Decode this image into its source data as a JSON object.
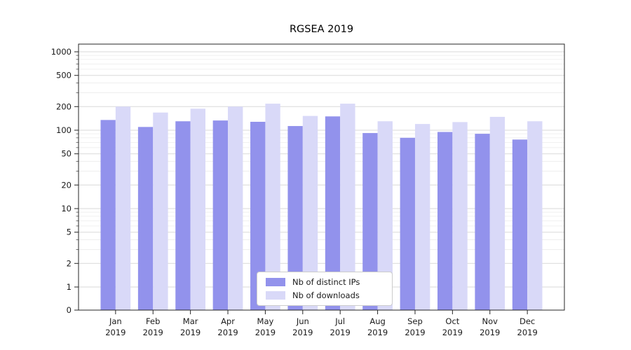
{
  "chart_data": {
    "type": "bar",
    "title": "RGSEA 2019",
    "categories": [
      "Jan 2019",
      "Feb 2019",
      "Mar 2019",
      "Apr 2019",
      "May 2019",
      "Jun 2019",
      "Jul 2019",
      "Aug 2019",
      "Sep 2019",
      "Oct 2019",
      "Nov 2019",
      "Dec 2019"
    ],
    "series": [
      {
        "name": "Nb of distinct IPs",
        "color": "#9292ec",
        "values": [
          135,
          110,
          130,
          133,
          128,
          113,
          150,
          92,
          80,
          95,
          90,
          76
        ]
      },
      {
        "name": "Nb of downloads",
        "color": "#d9d9f8",
        "values": [
          200,
          168,
          188,
          200,
          218,
          152,
          218,
          130,
          120,
          127,
          148,
          130
        ]
      }
    ],
    "yscale": "symlog",
    "yticks": [
      0,
      1,
      2,
      5,
      10,
      20,
      50,
      100,
      200,
      500,
      1000
    ],
    "ylim": [
      0,
      1300
    ],
    "xlabel": "",
    "ylabel": "",
    "grid": true,
    "legend_position": "lower center"
  }
}
